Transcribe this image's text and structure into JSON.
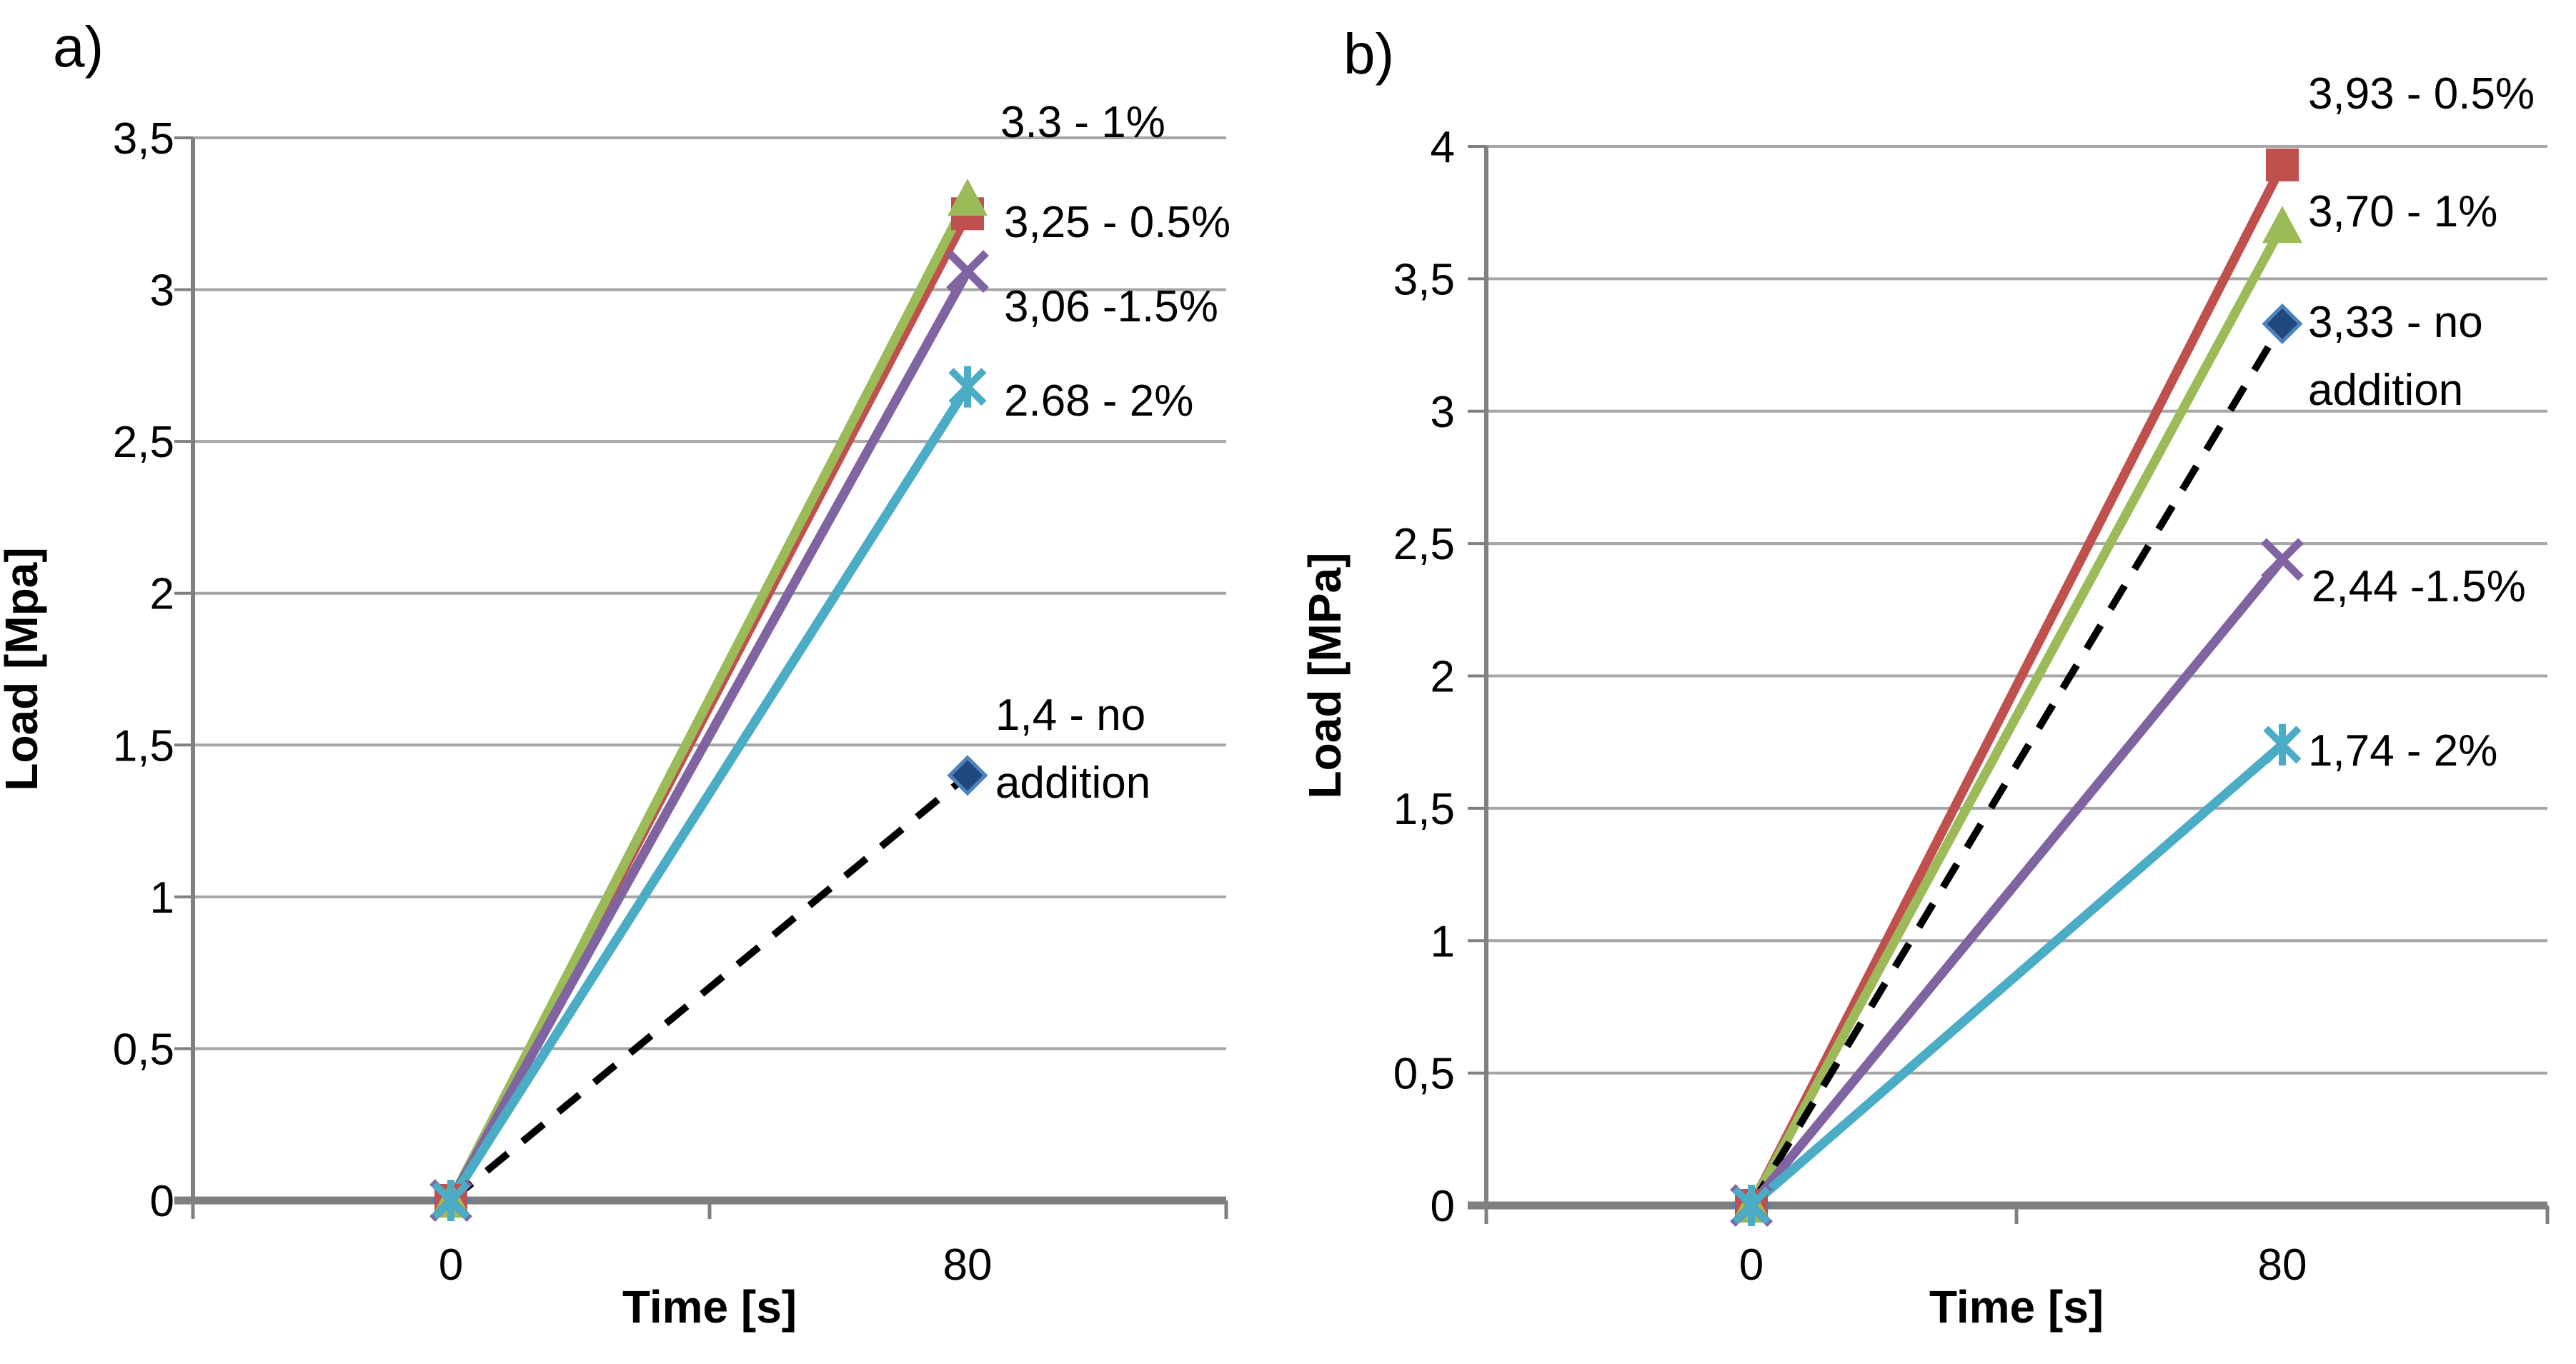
{
  "figure": {
    "panels": [
      {
        "panel_label": "a)"
      },
      {
        "panel_label": "b)"
      }
    ]
  },
  "style": {
    "background": "#ffffff",
    "text_color": "#000000",
    "grid_color": "#A6A6A6",
    "axis_color": "#808080",
    "x_axis_color": "#7F7F7F",
    "diamond_fill": "#1F497D",
    "diamond_edge": "#4F81BD"
  },
  "chart_data": [
    {
      "type": "line",
      "panel_label": "a)",
      "xlabel": "Time [s]",
      "ylabel": "Load [Mpa]",
      "x": [
        0,
        80
      ],
      "xtick_labels": [
        "0",
        "80"
      ],
      "ylim": [
        0,
        3.5
      ],
      "ytick_step": 0.5,
      "ytick_labels": [
        "0",
        "0,5",
        "1",
        "1,5",
        "2",
        "2,5",
        "3",
        "3,5"
      ],
      "grid": true,
      "legend_position": "none-direct-annotations",
      "series": [
        {
          "name": "0.5%",
          "values": [
            0,
            3.25
          ],
          "color": "#C0504D",
          "marker": "square",
          "line": "solid",
          "annotation": [
            "3,25 - 0.5%"
          ]
        },
        {
          "name": "1%",
          "values": [
            0,
            3.3
          ],
          "color": "#9BBB59",
          "marker": "triangle",
          "line": "solid",
          "annotation": [
            "3.3 - 1%"
          ]
        },
        {
          "name": "1.5%",
          "values": [
            0,
            3.06
          ],
          "color": "#8064A2",
          "marker": "x",
          "line": "solid",
          "annotation": [
            "3,06 -1.5%"
          ]
        },
        {
          "name": "2%",
          "values": [
            0,
            2.68
          ],
          "color": "#4BACC6",
          "marker": "asterisk",
          "line": "solid",
          "annotation": [
            "2.68 - 2%"
          ]
        },
        {
          "name": "no addition",
          "values": [
            0,
            1.4
          ],
          "color": "#000000",
          "marker": "diamond",
          "line": "dashed",
          "annotation": [
            "1,4 - no",
            "addition"
          ]
        }
      ]
    },
    {
      "type": "line",
      "panel_label": "b)",
      "xlabel": "Time [s]",
      "ylabel": "Load [MPa]",
      "x": [
        0,
        80
      ],
      "xtick_labels": [
        "0",
        "80"
      ],
      "ylim": [
        0,
        4
      ],
      "ytick_step": 0.5,
      "ytick_labels": [
        "0",
        "0,5",
        "1",
        "1,5",
        "2",
        "2,5",
        "3",
        "3,5",
        "4"
      ],
      "grid": true,
      "legend_position": "none-direct-annotations",
      "series": [
        {
          "name": "0.5%",
          "values": [
            0,
            3.93
          ],
          "color": "#C0504D",
          "marker": "square",
          "line": "solid",
          "annotation": [
            "3,93 - 0.5%"
          ]
        },
        {
          "name": "1%",
          "values": [
            0,
            3.7
          ],
          "color": "#9BBB59",
          "marker": "triangle",
          "line": "solid",
          "annotation": [
            "3,70 - 1%"
          ]
        },
        {
          "name": "no addition",
          "values": [
            0,
            3.33
          ],
          "color": "#000000",
          "marker": "diamond",
          "line": "dashed",
          "annotation": [
            "3,33 - no",
            "addition"
          ]
        },
        {
          "name": "1.5%",
          "values": [
            0,
            2.44
          ],
          "color": "#8064A2",
          "marker": "x",
          "line": "solid",
          "annotation": [
            "2,44 -1.5%"
          ]
        },
        {
          "name": "2%",
          "values": [
            0,
            1.74
          ],
          "color": "#4BACC6",
          "marker": "asterisk",
          "line": "solid",
          "annotation": [
            "1,74 - 2%"
          ]
        }
      ]
    }
  ]
}
